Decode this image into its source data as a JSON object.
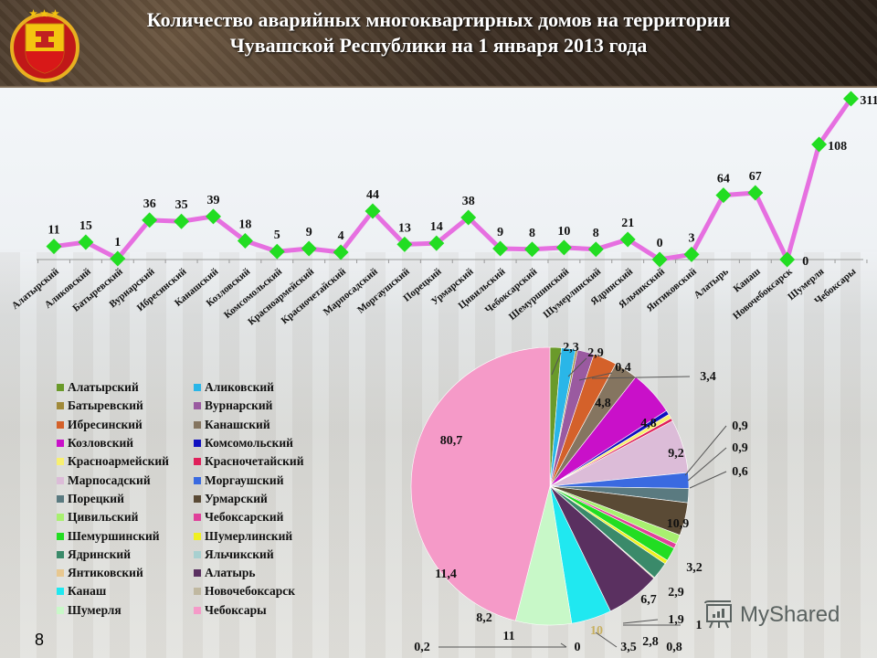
{
  "header": {
    "title_line1": "Количество аварийных многоквартирных домов на территории",
    "title_line2": "Чувашской Республики на 1 января 2013 года",
    "emblem_icon": "chuvash-republic-emblem-icon"
  },
  "page_number": "8",
  "watermark": {
    "text": "MyShared",
    "icon": "presentation-board-icon"
  },
  "colors": {
    "line": "#e66fe0",
    "marker": "#22dd22",
    "title_text": "#ffffff"
  },
  "chart_data": [
    {
      "type": "line",
      "title": "Количество аварийных многоквартирных домов",
      "xlabel": "",
      "ylabel": "",
      "grid": false,
      "legend": "none",
      "categories": [
        "Алатырский",
        "Аликовский",
        "Батыревский",
        "Вурнарский",
        "Ибресинский",
        "Канашский",
        "Козловский",
        "Комсомольский",
        "Красноармейский",
        "Красночетайский",
        "Марпосадский",
        "Моргаушский",
        "Порецкий",
        "Урмарский",
        "Цивильский",
        "Чебоксарский",
        "Шемуршинский",
        "Шумерлинский",
        "Ядринский",
        "Яльчикский",
        "Янтиковский",
        "Алатырь",
        "Канаш",
        "Новочебоксарск",
        "Шумерля",
        "Чебоксары"
      ],
      "values": [
        11,
        15,
        1,
        36,
        35,
        39,
        18,
        5,
        9,
        4,
        44,
        13,
        14,
        38,
        9,
        8,
        10,
        8,
        21,
        0,
        3,
        64,
        67,
        0,
        108,
        311
      ],
      "data_labels": [
        "11",
        "15",
        "1",
        "36",
        "35",
        "39",
        "18",
        "5",
        "9",
        "4",
        "44",
        "13",
        "14",
        "38",
        "9",
        "8",
        "10",
        "8",
        "21",
        "0",
        "3",
        "64",
        "67",
        "0",
        "108",
        "311"
      ]
    },
    {
      "type": "pie",
      "title": "",
      "legend_position": "left",
      "categories": [
        "Алатырский",
        "Аликовский",
        "Батыревский",
        "Вурнарский",
        "Ибресинский",
        "Канашский",
        "Козловский",
        "Комсомольский",
        "Красноармейский",
        "Красночетайский",
        "Марпосадский",
        "Моргаушский",
        "Порецкий",
        "Урмарский",
        "Цивильский",
        "Чебоксарский",
        "Шемуршинский",
        "Шумерлинский",
        "Ядринский",
        "Яльчикский",
        "Янтиковский",
        "Алатырь",
        "Канаш",
        "Новочебоксарск",
        "Шумерля",
        "Чебоксары"
      ],
      "values": [
        2.3,
        2.9,
        0.4,
        3.4,
        4.8,
        4.8,
        9.2,
        0.9,
        0.9,
        0.6,
        10.9,
        3.2,
        2.9,
        6.7,
        1.9,
        1,
        2.8,
        0.8,
        3.5,
        0,
        0.2,
        11,
        8.2,
        0,
        11.4,
        80.7
      ],
      "data_labels": [
        "2,3",
        "2,9",
        "0,4",
        "3,4",
        "4,8",
        "4,8",
        "9,2",
        "0,9",
        "0,9",
        "0,6",
        "10,9",
        "3,2",
        "2,9",
        "6,7",
        "1,9",
        "1",
        "2,8",
        "0,8",
        "3,5",
        "0",
        "0,2",
        "11",
        "8,2",
        "0",
        "11,4",
        "80,7"
      ],
      "colors": [
        "#6a9a2a",
        "#2ab6e8",
        "#a08a3a",
        "#9a5aa0",
        "#d4612a",
        "#857560",
        "#c910c9",
        "#1010c0",
        "#f8f070",
        "#e0205a",
        "#dcbcd8",
        "#3a6ae0",
        "#5a7a80",
        "#5a4a35",
        "#a8f070",
        "#e0409a",
        "#22dd22",
        "#f0f020",
        "#3a8a6a",
        "#a8d0d0",
        "#e8c890",
        "#5a3060",
        "#20e8f0",
        "#c0b8a0",
        "#c8f8c8",
        "#f59ac8"
      ],
      "center_label": "10"
    }
  ],
  "legend": [
    {
      "label": "Алатырский",
      "color": "#6a9a2a"
    },
    {
      "label": "Аликовский",
      "color": "#2ab6e8"
    },
    {
      "label": "Батыревский",
      "color": "#a08a3a"
    },
    {
      "label": "Вурнарский",
      "color": "#9a5aa0"
    },
    {
      "label": "Ибресинский",
      "color": "#d4612a"
    },
    {
      "label": "Канашский",
      "color": "#857560"
    },
    {
      "label": "Козловский",
      "color": "#c910c9"
    },
    {
      "label": "Комсомольский",
      "color": "#1010c0"
    },
    {
      "label": "Красноармейский",
      "color": "#f8f070"
    },
    {
      "label": "Красночетайский",
      "color": "#e0205a"
    },
    {
      "label": "Марпосадский",
      "color": "#dcbcd8"
    },
    {
      "label": "Моргаушский",
      "color": "#3a6ae0"
    },
    {
      "label": "Порецкий",
      "color": "#5a7a80"
    },
    {
      "label": "Урмарский",
      "color": "#5a4a35"
    },
    {
      "label": "Цивильский",
      "color": "#a8f070"
    },
    {
      "label": "Чебоксарский",
      "color": "#e0409a"
    },
    {
      "label": "Шемуршинский",
      "color": "#22dd22"
    },
    {
      "label": "Шумерлинский",
      "color": "#f0f020"
    },
    {
      "label": "Ядринский",
      "color": "#3a8a6a"
    },
    {
      "label": "Яльчикский",
      "color": "#a8d0d0"
    },
    {
      "label": "Янтиковский",
      "color": "#e8c890"
    },
    {
      "label": "Алатырь",
      "color": "#5a3060"
    },
    {
      "label": "Канаш",
      "color": "#20e8f0"
    },
    {
      "label": "Новочебоксарск",
      "color": "#c0b8a0"
    },
    {
      "label": "Шумерля",
      "color": "#c8f8c8"
    },
    {
      "label": "Чебоксары",
      "color": "#f59ac8"
    }
  ]
}
